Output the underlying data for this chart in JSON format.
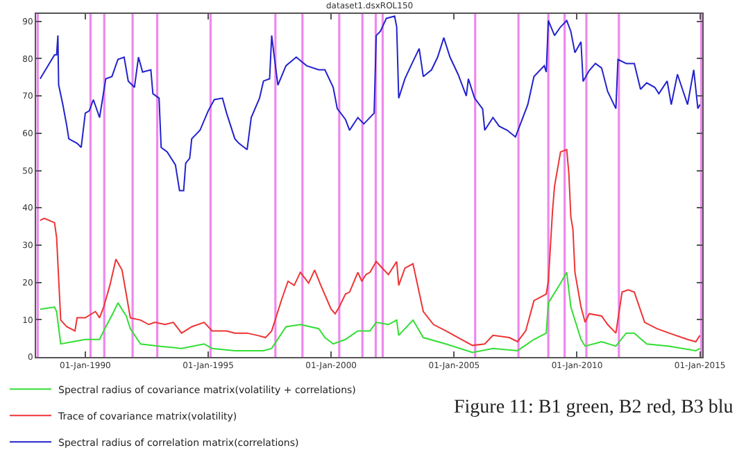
{
  "chart_data": {
    "type": "line",
    "title": "dataset1.dsxROL150",
    "xlim": [
      "1988-01-01",
      "2015-02-05"
    ],
    "xticks": [
      {
        "value": "1990-01-01",
        "label": "01-Jan-1990"
      },
      {
        "value": "1995-01-01",
        "label": "01-Jan-1995"
      },
      {
        "value": "2000-01-01",
        "label": "01-Jan-2000"
      },
      {
        "value": "2005-01-01",
        "label": "01-Jan-2005"
      },
      {
        "value": "2010-01-01",
        "label": "01-Jan-2010"
      },
      {
        "value": "2015-01-01",
        "label": "01-Jan-2015"
      }
    ],
    "ylim": [
      0,
      92
    ],
    "yticks": [
      0,
      10,
      20,
      30,
      40,
      50,
      60,
      70,
      80,
      90
    ],
    "grid": false,
    "legend": "bottom left",
    "marker": "none",
    "line_style": "solid",
    "series": [
      {
        "name": "Spectral radius of covariance matrix(volatility + correlations)",
        "color": "#33dd33",
        "x": [
          "1988-03",
          "1988-10",
          "1988-11",
          "1989-01",
          "1989-07",
          "1990-01",
          "1990-08",
          "1990-10",
          "1991-03",
          "1991-05",
          "1991-09",
          "1991-11",
          "1992-04",
          "1993-01",
          "1993-12",
          "1994-11",
          "1995-03",
          "1996-02",
          "1997-04",
          "1997-08",
          "1998-03",
          "1998-10",
          "1999-07",
          "1999-10",
          "2000-02",
          "2000-08",
          "2001-02",
          "2001-06",
          "2001-08",
          "2001-11",
          "2002-05",
          "2002-09",
          "2002-10",
          "2003-05",
          "2003-10",
          "2004-09",
          "2005-10",
          "2006-08",
          "2007-08",
          "2008-04",
          "2008-10",
          "2008-11",
          "2009-05",
          "2009-08",
          "2009-10",
          "2010-03",
          "2010-05",
          "2011-01",
          "2011-08",
          "2012-01",
          "2012-05",
          "2012-11",
          "2013-10",
          "2014-11",
          "2015-01"
        ],
        "values": [
          12.8,
          13.4,
          12.2,
          3.5,
          4.1,
          4.7,
          4.7,
          7,
          12.2,
          14.5,
          11,
          7.6,
          3.5,
          2.9,
          2.3,
          3.5,
          2.3,
          1.7,
          1.7,
          2.3,
          8.1,
          8.7,
          7.6,
          5.2,
          3.5,
          4.7,
          7,
          7,
          7,
          9.3,
          8.7,
          9.9,
          5.8,
          9.9,
          5.2,
          3.5,
          1.2,
          2.3,
          1.7,
          4.7,
          6.4,
          14.5,
          19.8,
          22.7,
          13.4,
          4.7,
          2.9,
          4.1,
          2.9,
          6.4,
          6.4,
          3.5,
          2.9,
          1.7,
          2.3
        ]
      },
      {
        "name": "Trace of covariance matrix(volatility)",
        "color": "#ee3333",
        "x": [
          "1988-03",
          "1988-05",
          "1988-10",
          "1988-11",
          "1989-01",
          "1989-04",
          "1989-08",
          "1989-09",
          "1990-01",
          "1990-06",
          "1990-08",
          "1990-10",
          "1991-01",
          "1991-04",
          "1991-07",
          "1991-09",
          "1991-11",
          "1992-04",
          "1992-08",
          "1992-11",
          "1993-04",
          "1993-08",
          "1993-12",
          "1994-05",
          "1994-11",
          "1995-03",
          "1995-10",
          "1996-02",
          "1996-08",
          "1997-01",
          "1997-05",
          "1997-08",
          "1998-01",
          "1998-04",
          "1998-07",
          "1998-10",
          "1999-02",
          "1999-05",
          "1999-08",
          "2000-01",
          "2000-03",
          "2000-05",
          "2000-08",
          "2000-10",
          "2001-02",
          "2001-04",
          "2001-06",
          "2001-08",
          "2001-11",
          "2002-02",
          "2002-05",
          "2002-09",
          "2002-10",
          "2003-01",
          "2003-05",
          "2003-10",
          "2004-03",
          "2004-09",
          "2005-03",
          "2005-10",
          "2006-04",
          "2006-08",
          "2007-04",
          "2007-08",
          "2007-12",
          "2008-04",
          "2008-10",
          "2008-11",
          "2009-01",
          "2009-02",
          "2009-05",
          "2009-08",
          "2009-09",
          "2009-10",
          "2009-11",
          "2009-12",
          "2010-03",
          "2010-05",
          "2010-07",
          "2011-01",
          "2011-04",
          "2011-08",
          "2011-11",
          "2012-02",
          "2012-05",
          "2012-10",
          "2013-04",
          "2013-10",
          "2014-07",
          "2014-11",
          "2015-01"
        ],
        "values": [
          36.6,
          37.2,
          36,
          32,
          9.9,
          8.1,
          7,
          10.5,
          10.5,
          12.2,
          10.5,
          13.4,
          19.2,
          26.2,
          23.3,
          16.9,
          10.5,
          9.9,
          8.7,
          9.3,
          8.7,
          9.3,
          6.4,
          8.1,
          9.3,
          7,
          7,
          6.4,
          6.4,
          5.8,
          5.2,
          7,
          15.7,
          20.3,
          19.2,
          22.7,
          19.8,
          23.3,
          19.2,
          12.8,
          11.6,
          13.4,
          16.9,
          17.4,
          22.7,
          20.3,
          22.1,
          22.7,
          25.6,
          23.8,
          22.1,
          25.6,
          19.2,
          23.8,
          25,
          12.2,
          8.7,
          7,
          5.2,
          3.1,
          3.5,
          5.8,
          5.2,
          4.1,
          7,
          15.1,
          16.9,
          20.3,
          38.9,
          45.8,
          55,
          55.6,
          49.3,
          37.6,
          34.3,
          22.7,
          13.4,
          9.3,
          11.6,
          11,
          8.7,
          6.4,
          17.4,
          18,
          17.4,
          9.3,
          7.6,
          6.4,
          4.7,
          4.1,
          5.8
        ]
      },
      {
        "name": "Spectral radius of correlation matrix(correlations)",
        "color": "#2222cc",
        "x": [
          "1988-03",
          "1988-10",
          "1988-11-01",
          "1988-11-20",
          "1988-12",
          "1989-02",
          "1989-04",
          "1989-05",
          "1989-09",
          "1989-11",
          "1990-01",
          "1990-03",
          "1990-05",
          "1990-08",
          "1990-11",
          "1991-02",
          "1991-05",
          "1991-08",
          "1991-10",
          "1992-01",
          "1992-03",
          "1992-05",
          "1992-09",
          "1992-10",
          "1993-01",
          "1993-02",
          "1993-05",
          "1993-09",
          "1993-11",
          "1994-01",
          "1994-02",
          "1994-04",
          "1994-05",
          "1994-09",
          "1995-01",
          "1995-04",
          "1995-08",
          "1995-10",
          "1996-02",
          "1996-04",
          "1996-08",
          "1996-10",
          "1997-02",
          "1997-04",
          "1997-07",
          "1997-08",
          "1997-09",
          "1997-11",
          "1998-03",
          "1998-08",
          "1999-01",
          "1999-07",
          "1999-10",
          "2000-02",
          "2000-04",
          "2000-08",
          "2000-10",
          "2001-02",
          "2001-05",
          "2001-10",
          "2001-11",
          "2002-01",
          "2002-04",
          "2002-08",
          "2002-09",
          "2002-10",
          "2003-01",
          "2003-04",
          "2003-08",
          "2003-10",
          "2004-02",
          "2004-05",
          "2004-08",
          "2004-11",
          "2005-03",
          "2005-07",
          "2005-08",
          "2005-11",
          "2006-03",
          "2006-04",
          "2006-08",
          "2006-11",
          "2007-03",
          "2007-07",
          "2007-09",
          "2008-01",
          "2008-04",
          "2008-09",
          "2008-10",
          "2008-11",
          "2009-02",
          "2009-05",
          "2009-08",
          "2009-10",
          "2009-12",
          "2010-03",
          "2010-04",
          "2010-07",
          "2010-10",
          "2011-01",
          "2011-04",
          "2011-08",
          "2011-09",
          "2012-01",
          "2012-05",
          "2012-08",
          "2012-11",
          "2013-03",
          "2013-05",
          "2013-09",
          "2013-11",
          "2014-02",
          "2014-07",
          "2014-10",
          "2014-12",
          "2015-01"
        ],
        "values": [
          74.6,
          81,
          81,
          86.2,
          73,
          67.7,
          62,
          58.5,
          57.3,
          56.2,
          65.4,
          66,
          69,
          64.2,
          74.6,
          75.2,
          79.8,
          80.4,
          74,
          72.3,
          80.4,
          76.4,
          77,
          70.6,
          69.4,
          56.2,
          55,
          51.5,
          44.6,
          44.6,
          52,
          53.3,
          58.5,
          60.8,
          66,
          69,
          69.4,
          65.4,
          58.5,
          57.3,
          55.6,
          64.2,
          69.4,
          74,
          74.6,
          86.2,
          81.6,
          72.9,
          78.1,
          80.4,
          78.1,
          77,
          77,
          72.3,
          66.6,
          63.7,
          60.8,
          64.2,
          62.5,
          65.4,
          86.2,
          87.3,
          90.8,
          91.4,
          88.5,
          69.4,
          74.6,
          78.1,
          82.7,
          75.2,
          77,
          80.4,
          85.6,
          80.4,
          75.8,
          70,
          74.6,
          69.4,
          66.5,
          60.8,
          64.2,
          61.9,
          60.8,
          59,
          61.9,
          67.7,
          75.2,
          78.1,
          76.4,
          90.2,
          86.2,
          88.5,
          90.2,
          87.3,
          81.6,
          84.5,
          73.9,
          76.8,
          78.7,
          77.5,
          71.2,
          66.6,
          79.8,
          78.7,
          78.7,
          71.8,
          73.5,
          72.3,
          70.6,
          74,
          67.7,
          75.8,
          67.7,
          77,
          66.6,
          67.7
        ]
      }
    ],
    "ref_lines": [
      {
        "axis": "x",
        "value": "1988-01-25",
        "color": "#ee88ee"
      },
      {
        "axis": "x",
        "value": "1990-03-20",
        "color": "#ee88ee"
      },
      {
        "axis": "x",
        "value": "1990-10-10",
        "color": "#ee88ee"
      },
      {
        "axis": "x",
        "value": "1991-12-05",
        "color": "#ee88ee"
      },
      {
        "axis": "x",
        "value": "1992-12-05",
        "color": "#ee88ee"
      },
      {
        "axis": "x",
        "value": "1995-02-05",
        "color": "#ee88ee"
      },
      {
        "axis": "x",
        "value": "1997-09-25",
        "color": "#ee88ee"
      },
      {
        "axis": "x",
        "value": "1998-11-01",
        "color": "#ee88ee"
      },
      {
        "axis": "x",
        "value": "2000-05-01",
        "color": "#ee88ee"
      },
      {
        "axis": "x",
        "value": "2001-04-10",
        "color": "#ee88ee"
      },
      {
        "axis": "x",
        "value": "2001-10-25",
        "color": "#ee88ee"
      },
      {
        "axis": "x",
        "value": "2002-02-05",
        "color": "#ee88ee"
      },
      {
        "axis": "x",
        "value": "2005-11-10",
        "color": "#ee88ee"
      },
      {
        "axis": "x",
        "value": "2007-08-15",
        "color": "#ee88ee"
      },
      {
        "axis": "x",
        "value": "2008-11-01",
        "color": "#ee88ee"
      },
      {
        "axis": "x",
        "value": "2009-07-01",
        "color": "#ee88ee"
      },
      {
        "axis": "x",
        "value": "2010-05-20",
        "color": "#ee88ee"
      },
      {
        "axis": "x",
        "value": "2011-09-15",
        "color": "#ee88ee"
      },
      {
        "axis": "x",
        "value": "2015-01-20",
        "color": "#ee88ee"
      }
    ],
    "annotations": [
      "Figure 11: B1 green, B2 red, B3 blu"
    ]
  }
}
